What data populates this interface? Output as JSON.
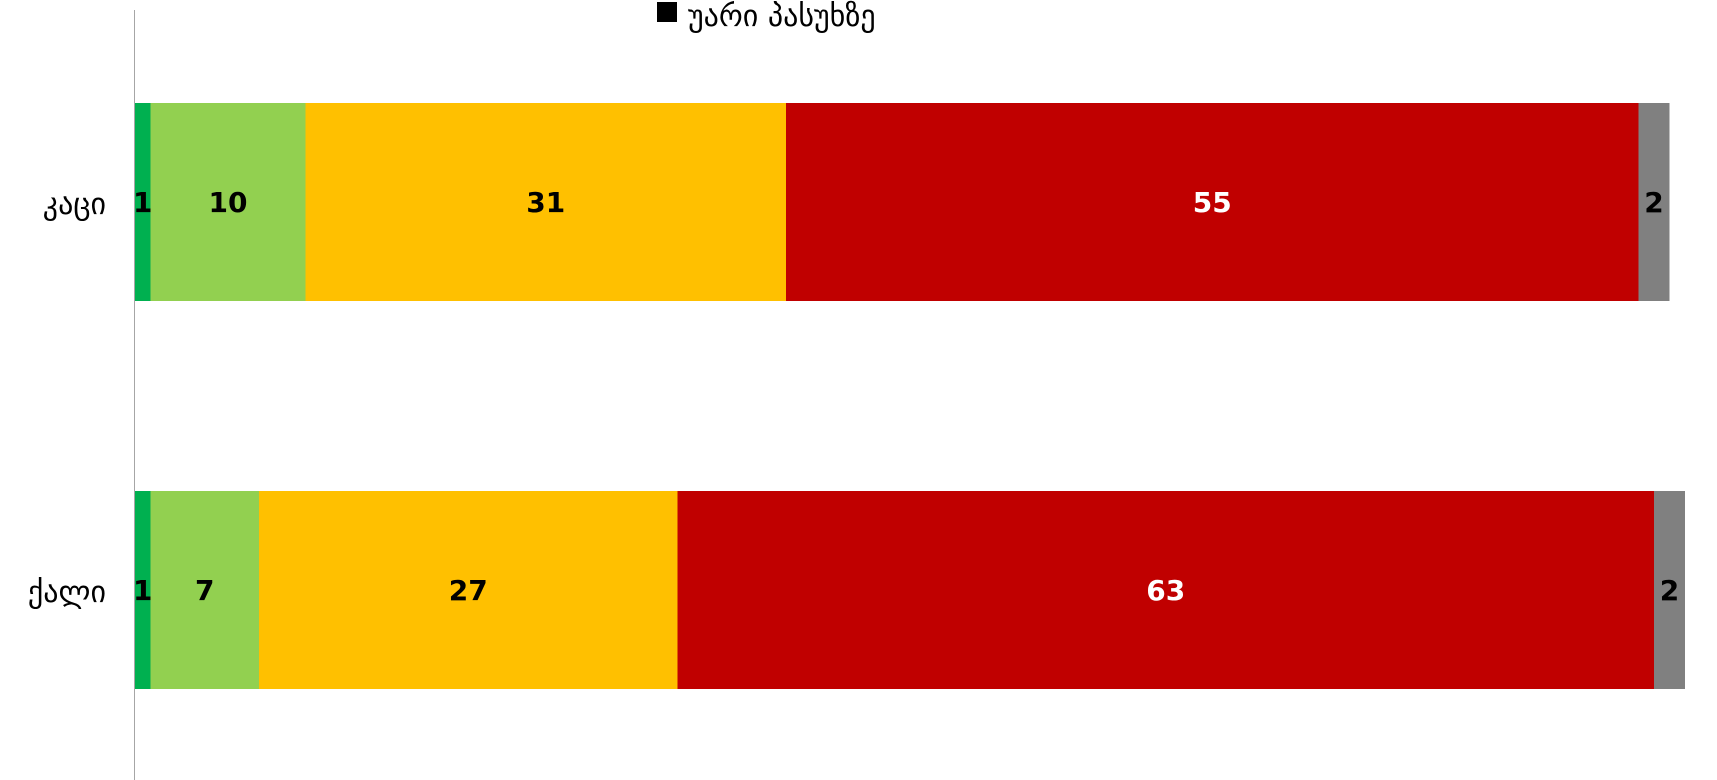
{
  "legend": {
    "visible_entry": "უარი პასუხზე",
    "marker_color": "#000000"
  },
  "chart_data": {
    "type": "bar",
    "orientation": "horizontal",
    "stacked": true,
    "percent_stacked": true,
    "categories": [
      "კაცი",
      "ქალი"
    ],
    "series": [
      {
        "values": [
          1,
          1
        ],
        "color": "#00B050",
        "label_color": "#000000"
      },
      {
        "values": [
          10,
          7
        ],
        "color": "#92D050",
        "label_color": "#000000"
      },
      {
        "values": [
          31,
          27
        ],
        "color": "#FFC000",
        "label_color": "#000000"
      },
      {
        "values": [
          55,
          63
        ],
        "color": "#C00000",
        "label_color": "#FFFFFF"
      },
      {
        "name": "უარი პასუხზე",
        "values": [
          2,
          2
        ],
        "color": "#808080",
        "label_color": "#000000"
      }
    ],
    "legend_position": "top",
    "grid": false
  }
}
